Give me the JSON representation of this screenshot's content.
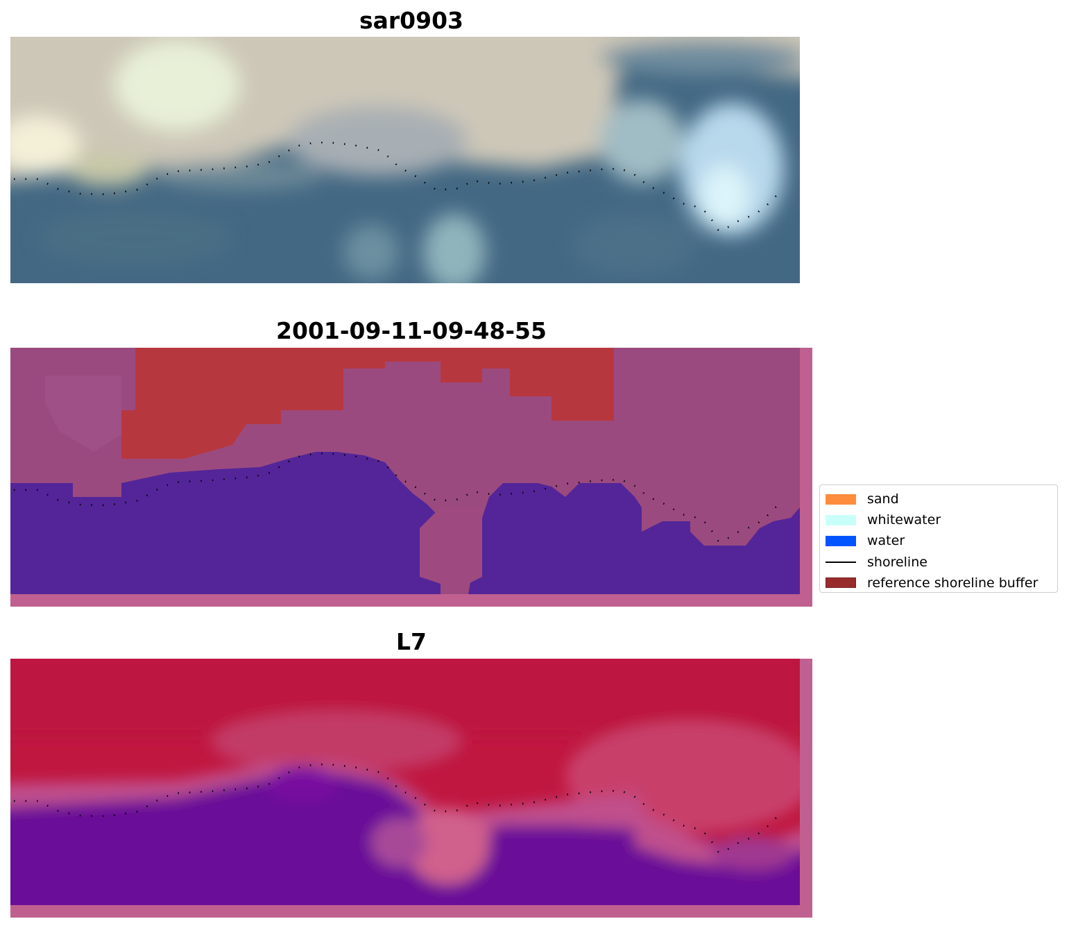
{
  "panels": [
    {
      "id": "rgb",
      "title": "sar0903"
    },
    {
      "id": "classified",
      "title": "2001-09-11-09-48-55"
    },
    {
      "id": "index",
      "title": "L7"
    }
  ],
  "legend": {
    "items": [
      {
        "label": "sand",
        "color": "#ff8c3c",
        "kind": "patch"
      },
      {
        "label": "whitewater",
        "color": "#c8fff8",
        "kind": "patch"
      },
      {
        "label": "water",
        "color": "#0055ff",
        "kind": "patch"
      },
      {
        "label": "shoreline",
        "color": "#000000",
        "kind": "line"
      },
      {
        "label": "reference shoreline buffer",
        "color": "#982c2c",
        "kind": "patch"
      }
    ]
  },
  "colors": {
    "water_rgb": "#436883",
    "sand_rgb": "#d2cbb8",
    "classified_water": "#532599",
    "classified_land": "#b7373f",
    "classified_buffer": "#9b4a7f",
    "index_land": "#c01740",
    "index_water": "#660c99",
    "frame_pink": "#c06090"
  }
}
